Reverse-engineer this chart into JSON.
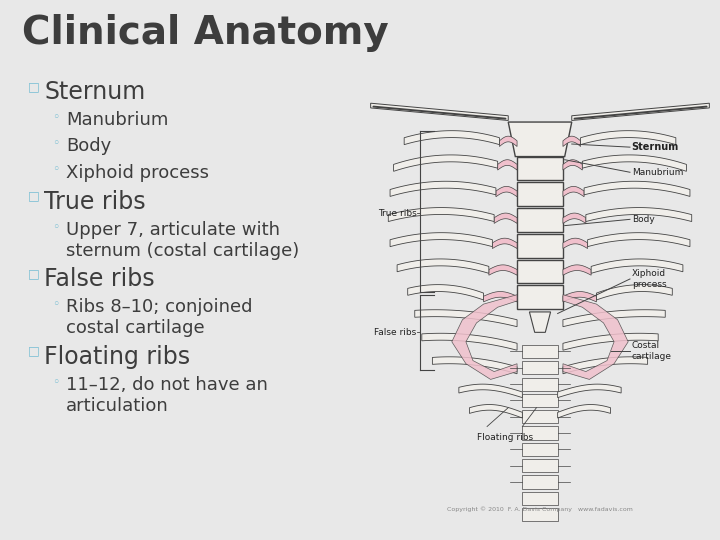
{
  "title": "Clinical Anatomy",
  "title_color": "#3d3d3d",
  "title_fontsize": 28,
  "title_weight": "bold",
  "background_color": "#e8e8e8",
  "bullet_color": "#7bbfd4",
  "text_color": "#3d3d3d",
  "sub_text_color": "#3d3d3d",
  "bullet_items": [
    {
      "level": 1,
      "text": "Sternum",
      "fontsize": 17
    },
    {
      "level": 2,
      "text": "Manubrium",
      "fontsize": 13
    },
    {
      "level": 2,
      "text": "Body",
      "fontsize": 13
    },
    {
      "level": 2,
      "text": "Xiphoid process",
      "fontsize": 13
    },
    {
      "level": 1,
      "text": "True ribs",
      "fontsize": 17
    },
    {
      "level": 2,
      "text": "Upper 7, articulate with\nsternum (costal cartilage)",
      "fontsize": 13
    },
    {
      "level": 1,
      "text": "False ribs",
      "fontsize": 17
    },
    {
      "level": 2,
      "text": "Ribs 8–10; conjoined\ncostal cartilage",
      "fontsize": 13
    },
    {
      "level": 1,
      "text": "Floating ribs",
      "fontsize": 17
    },
    {
      "level": 2,
      "text": "11–12, do not have an\narticulation",
      "fontsize": 13
    }
  ],
  "bone_color": "#f0eeea",
  "cartilage_color": "#f0c0cc",
  "outline_color": "#444444",
  "label_color": "#222222",
  "copyright_text": "Copyright © 2010  F. A. Davis Company   www.fadavis.com"
}
